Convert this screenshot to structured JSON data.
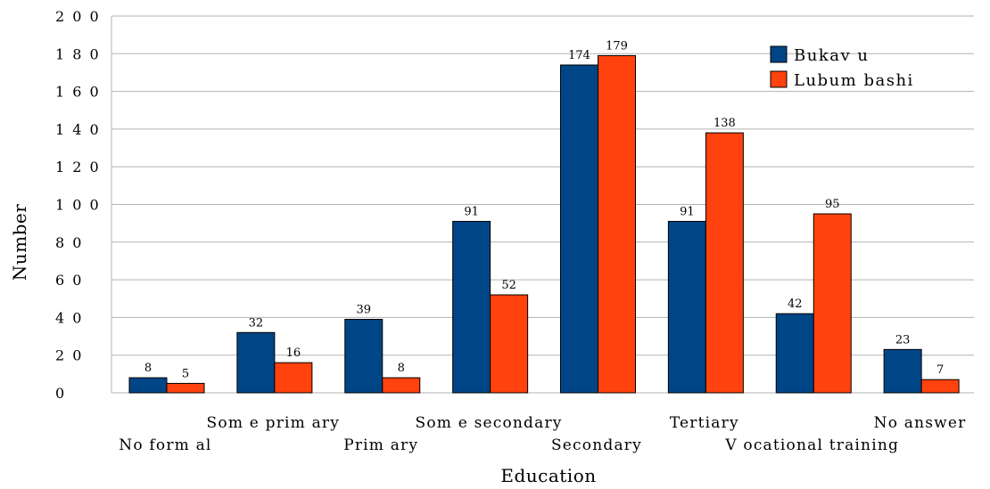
{
  "chart_data": {
    "type": "bar",
    "title": "",
    "xlabel": "Education",
    "ylabel": "Number",
    "ylim": [
      0,
      200
    ],
    "yticks": [
      "0",
      "2 0",
      "4 0",
      "6 0",
      "8 0",
      "1 0 0",
      "1 2 0",
      "1 4 0",
      "1 6 0",
      "1 8 0",
      "2 0 0"
    ],
    "categories": [
      "No form al",
      "Som e prim ary",
      "Prim ary",
      "Som e secondary",
      "Secondary",
      "Tertiary",
      "V ocational training",
      "No answer"
    ],
    "series": [
      {
        "name": "Bukav u",
        "color": "#004586",
        "values": [
          8,
          32,
          39,
          91,
          174,
          91,
          42,
          23
        ]
      },
      {
        "name": "Lubum bashi",
        "color": "#ff420e",
        "values": [
          5,
          16,
          8,
          52,
          179,
          138,
          95,
          7
        ]
      }
    ],
    "grid": true,
    "legend": "top-right"
  }
}
